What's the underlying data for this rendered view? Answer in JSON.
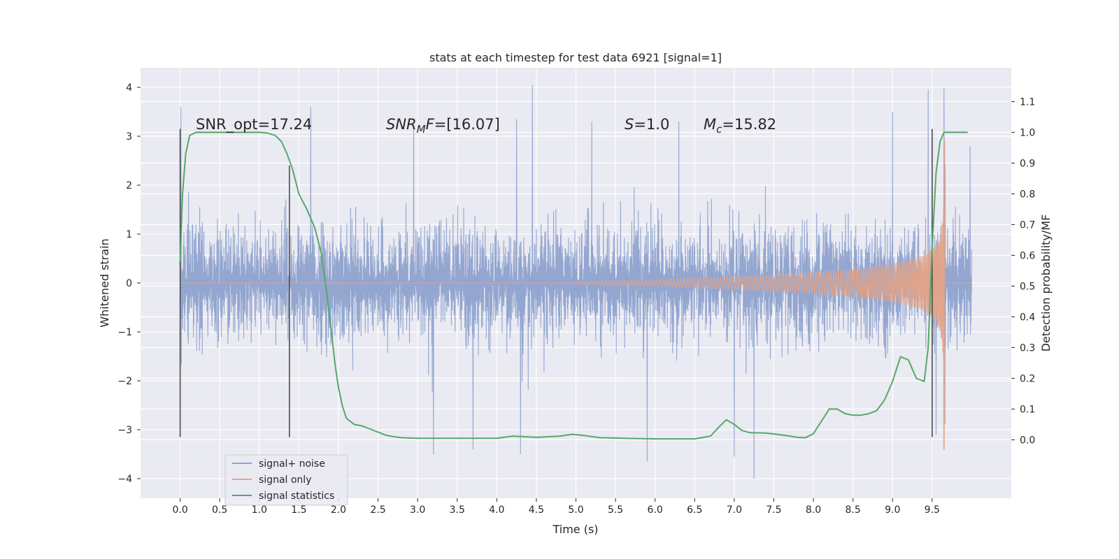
{
  "chart_data": {
    "type": "line",
    "title": "stats at each timestep for test data 6921 [signal=1]",
    "xlabel": "Time (s)",
    "ylabel_left": "Whitened strain",
    "ylabel_right": "Detection probability/MF",
    "xlim": [
      -0.5,
      10.5
    ],
    "ylim_left": [
      -4.4,
      4.4
    ],
    "ylim_right": [
      -0.19,
      1.21
    ],
    "x_ticks": [
      "0.0",
      "0.5",
      "1.0",
      "1.5",
      "2.0",
      "2.5",
      "3.0",
      "3.5",
      "4.0",
      "4.5",
      "5.0",
      "5.5",
      "6.0",
      "6.5",
      "7.0",
      "7.5",
      "8.0",
      "8.5",
      "9.0",
      "9.5"
    ],
    "x_tick_values": [
      0.0,
      0.5,
      1.0,
      1.5,
      2.0,
      2.5,
      3.0,
      3.5,
      4.0,
      4.5,
      5.0,
      5.5,
      6.0,
      6.5,
      7.0,
      7.5,
      8.0,
      8.5,
      9.0,
      9.5
    ],
    "y_left_ticks": [
      "4",
      "3",
      "2",
      "1",
      "0",
      "−1",
      "−2",
      "−3",
      "−4"
    ],
    "y_left_tick_values": [
      4,
      3,
      2,
      1,
      0,
      -1,
      -2,
      -3,
      -4
    ],
    "y_right_ticks": [
      "1.1",
      "1.0",
      "0.9",
      "0.8",
      "0.7",
      "0.6",
      "0.5",
      "0.4",
      "0.3",
      "0.2",
      "0.1",
      "0.0"
    ],
    "y_right_tick_values": [
      1.1,
      1.0,
      0.9,
      0.8,
      0.7,
      0.6,
      0.5,
      0.4,
      0.3,
      0.2,
      0.1,
      0.0
    ],
    "grid": true,
    "legend_position": "lower-left",
    "legend": [
      "signal+ noise",
      "signal only",
      "signal statistics"
    ],
    "colors": {
      "noise": "#8ea2cd",
      "signal": "#e8a383",
      "statistics": "#55a868",
      "markers": "#4d4d4d",
      "background": "#eaeaf2",
      "grid": "#ffffff"
    },
    "annotations": {
      "snr_opt": "SNR_opt=17.24",
      "snr_mf_sym": "SNR",
      "snr_mf_sub": "M",
      "snr_mf_f": "F",
      "snr_mf_val": "=[16.07]",
      "s_sym": "S",
      "s_val": "=1.0",
      "mc_sym": "M",
      "mc_sub": "c",
      "mc_val": "=15.82"
    },
    "noise_series": {
      "name": "signal+ noise",
      "x_range": [
        0.0,
        10.0
      ],
      "typical_range": [
        -2.3,
        2.3
      ],
      "peaks": [
        {
          "x": 0.01,
          "y": 3.6
        },
        {
          "x": 1.65,
          "y": 3.6
        },
        {
          "x": 2.95,
          "y": 3.2
        },
        {
          "x": 4.25,
          "y": 3.35
        },
        {
          "x": 4.45,
          "y": 4.05
        },
        {
          "x": 5.2,
          "y": 3.3
        },
        {
          "x": 6.3,
          "y": 3.3
        },
        {
          "x": 9.0,
          "y": 3.5
        },
        {
          "x": 9.45,
          "y": 3.95
        },
        {
          "x": 9.65,
          "y": 4.0
        },
        {
          "x": 9.98,
          "y": 2.8
        }
      ],
      "troughs": [
        {
          "x": 3.2,
          "y": -3.5
        },
        {
          "x": 3.7,
          "y": -3.4
        },
        {
          "x": 4.3,
          "y": -3.5
        },
        {
          "x": 5.9,
          "y": -3.65
        },
        {
          "x": 7.25,
          "y": -4.0
        },
        {
          "x": 7.0,
          "y": -3.55
        },
        {
          "x": 9.55,
          "y": -3.1
        }
      ]
    },
    "signal_series": {
      "name": "signal only",
      "start": 5.0,
      "merger": 9.65,
      "end_amplitude": 3.3,
      "min_value": -3.4
    },
    "statistics_series": {
      "name": "signal statistics",
      "axis": "right",
      "x": [
        0.0,
        0.03,
        0.07,
        0.12,
        0.2,
        0.3,
        0.5,
        0.8,
        1.0,
        1.1,
        1.2,
        1.28,
        1.35,
        1.42,
        1.5,
        1.6,
        1.7,
        1.78,
        1.84,
        1.88,
        1.92,
        1.96,
        2.0,
        2.05,
        2.1,
        2.2,
        2.3,
        2.4,
        2.5,
        2.6,
        2.7,
        2.8,
        3.0,
        3.5,
        4.0,
        4.2,
        4.5,
        4.8,
        4.95,
        5.1,
        5.3,
        5.6,
        6.0,
        6.5,
        6.7,
        6.8,
        6.9,
        7.0,
        7.1,
        7.2,
        7.4,
        7.6,
        7.8,
        7.9,
        8.0,
        8.1,
        8.2,
        8.3,
        8.4,
        8.5,
        8.6,
        8.7,
        8.8,
        8.9,
        9.0,
        9.1,
        9.2,
        9.3,
        9.4,
        9.45,
        9.5,
        9.55,
        9.6,
        9.65,
        9.7,
        9.8,
        9.95
      ],
      "y": [
        0.58,
        0.8,
        0.93,
        0.99,
        1.0,
        1.0,
        1.0,
        1.0,
        1.0,
        0.998,
        0.99,
        0.97,
        0.93,
        0.88,
        0.8,
        0.75,
        0.69,
        0.61,
        0.5,
        0.42,
        0.33,
        0.24,
        0.17,
        0.11,
        0.07,
        0.05,
        0.045,
        0.035,
        0.025,
        0.015,
        0.01,
        0.007,
        0.005,
        0.005,
        0.005,
        0.012,
        0.008,
        0.012,
        0.018,
        0.014,
        0.007,
        0.005,
        0.003,
        0.003,
        0.012,
        0.04,
        0.065,
        0.05,
        0.03,
        0.023,
        0.022,
        0.016,
        0.008,
        0.007,
        0.02,
        0.06,
        0.1,
        0.1,
        0.085,
        0.08,
        0.08,
        0.085,
        0.095,
        0.13,
        0.19,
        0.27,
        0.26,
        0.2,
        0.19,
        0.3,
        0.63,
        0.87,
        0.97,
        1.0,
        1.0,
        1.0,
        1.0
      ]
    },
    "event_markers": [
      {
        "x": 0.0,
        "y_top": 3.15,
        "y_bottom": -3.15
      },
      {
        "x": 1.38,
        "y_top": 2.4,
        "y_bottom": -3.15
      },
      {
        "x": 9.5,
        "y_top": 3.15,
        "y_bottom": -3.15
      }
    ]
  }
}
